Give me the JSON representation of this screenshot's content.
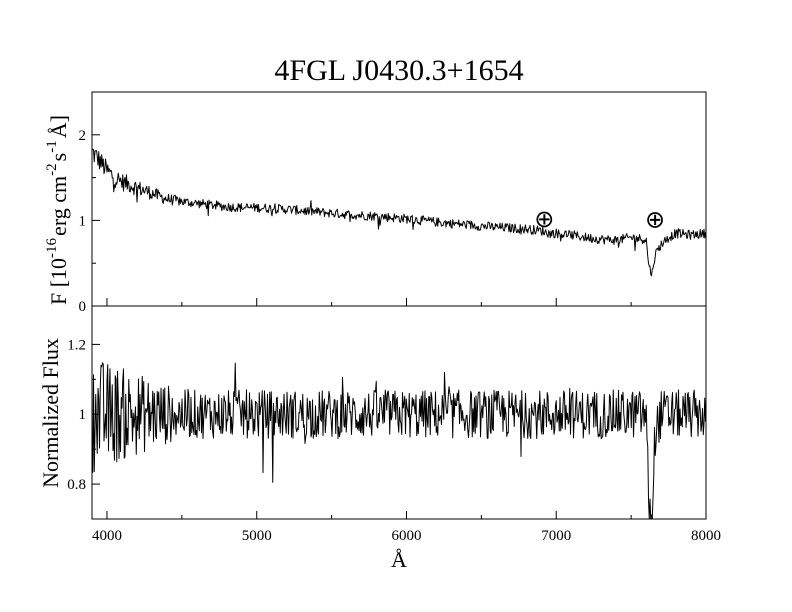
{
  "chart_data": [
    {
      "type": "line",
      "title": "4FGL J0430.3+1654",
      "ylabel": "F [10^-16 erg cm^-2 s^-1 Å]",
      "ylabel_parts": {
        "a": "F [10",
        "b": "-16",
        "c": "erg cm",
        "d": "-2",
        "e": "s",
        "f": "-1",
        "g": "Å]"
      },
      "xlim": [
        3900,
        8000
      ],
      "ylim": [
        0,
        2.5
      ],
      "y_ticks": [
        0,
        1,
        2
      ],
      "y_ticklabels": [
        "0",
        "1",
        "2"
      ],
      "annotations": [
        {
          "text": "⊕",
          "x": 6920,
          "y": 1.03
        },
        {
          "text": "⊕",
          "x": 7660,
          "y": 1.02
        }
      ],
      "series": [
        {
          "x": [
            3900,
            3950,
            4000,
            4050,
            4100,
            4150,
            4200,
            4250,
            4300,
            4350,
            4400,
            4500,
            4600,
            4700,
            4800,
            4900,
            5000,
            5200,
            5400,
            5600,
            5800,
            6000,
            6200,
            6400,
            6600,
            6800,
            6900,
            6950,
            7000,
            7100,
            7200,
            7300,
            7400,
            7500,
            7600,
            7620,
            7640,
            7660,
            7700,
            7750,
            7800,
            7900,
            8000
          ],
          "y": [
            1.8,
            1.7,
            1.58,
            1.5,
            1.45,
            1.42,
            1.38,
            1.35,
            1.32,
            1.28,
            1.25,
            1.22,
            1.2,
            1.18,
            1.16,
            1.15,
            1.15,
            1.13,
            1.1,
            1.07,
            1.05,
            1.02,
            0.98,
            0.95,
            0.92,
            0.9,
            0.88,
            0.85,
            0.85,
            0.83,
            0.8,
            0.78,
            0.77,
            0.8,
            0.78,
            0.45,
            0.38,
            0.6,
            0.72,
            0.8,
            0.85,
            0.83,
            0.85
          ]
        }
      ]
    },
    {
      "type": "line",
      "xlabel": "Å",
      "ylabel": "Normalized Flux",
      "xlim": [
        3900,
        8000
      ],
      "ylim": [
        0.7,
        1.31
      ],
      "x_ticks": [
        4000,
        5000,
        6000,
        7000,
        8000
      ],
      "x_ticklabels": [
        "4000",
        "5000",
        "6000",
        "7000",
        "8000"
      ],
      "y_ticks": [
        0.8,
        1.0,
        1.2
      ],
      "y_ticklabels": [
        "0.8",
        "1",
        "1.2"
      ],
      "series": [
        {
          "x": [
            3900,
            4000,
            4100,
            4200,
            4300,
            4400,
            4500,
            4600,
            4700,
            4800,
            4900,
            5000,
            5200,
            5400,
            5600,
            5800,
            6000,
            6200,
            6400,
            6600,
            6800,
            7000,
            7200,
            7400,
            7500,
            7600,
            7620,
            7640,
            7660,
            7700,
            7800,
            7900,
            8000
          ],
          "y": [
            1.0,
            1.0,
            1.0,
            1.0,
            1.0,
            1.0,
            1.0,
            1.0,
            1.0,
            1.0,
            1.0,
            1.0,
            1.0,
            1.0,
            1.0,
            1.0,
            1.0,
            1.0,
            1.0,
            1.0,
            1.0,
            1.0,
            1.0,
            1.0,
            1.0,
            1.0,
            0.72,
            0.7,
            0.95,
            1.0,
            1.0,
            1.0,
            1.0
          ]
        }
      ]
    }
  ]
}
